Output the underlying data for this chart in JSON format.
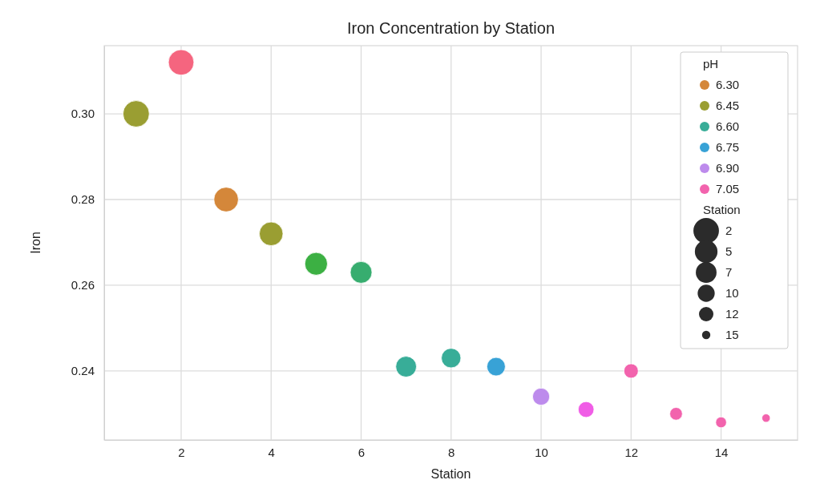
{
  "chart_data": {
    "type": "bubble",
    "title": "Iron Concentration by Station",
    "xlabel": "Station",
    "ylabel": "Iron",
    "series": [
      {
        "name": "6.30",
        "color": "#d4873a",
        "x": [
          3
        ],
        "values": [
          0.28
        ],
        "sizes": [
          0.87
        ]
      },
      {
        "name": "6.45",
        "color": "#9a9e32",
        "x": [
          1,
          4
        ],
        "values": [
          0.3,
          0.272
        ],
        "sizes": [
          1,
          0.81
        ]
      },
      {
        "name": "6.60",
        "color": "#38ad98",
        "x": [
          7,
          8
        ],
        "values": [
          0.241,
          0.243
        ],
        "sizes": [
          0.62,
          0.55
        ]
      },
      {
        "name": "6.75",
        "color": "#38a2d6",
        "x": [
          9
        ],
        "values": [
          0.241
        ],
        "sizes": [
          0.49
        ]
      },
      {
        "name": "6.90",
        "color": "#bd8bec",
        "x": [
          10
        ],
        "values": [
          0.234
        ],
        "sizes": [
          0.42
        ]
      },
      {
        "name": "7.05",
        "color": "#f263ad",
        "x": [
          12,
          13,
          14,
          15
        ],
        "values": [
          0.24,
          0.23,
          0.228,
          0.229
        ],
        "sizes": [
          0.3,
          0.23,
          0.17,
          0.1
        ]
      },
      {
        "color": "#f5657f",
        "x": [
          2
        ],
        "values": [
          0.312
        ],
        "sizes": [
          0.94
        ]
      },
      {
        "color": "#3cb043",
        "x": [
          5
        ],
        "values": [
          0.265
        ],
        "sizes": [
          0.74
        ]
      },
      {
        "color": "#37ad6f",
        "x": [
          6
        ],
        "values": [
          0.263
        ],
        "sizes": [
          0.68
        ]
      },
      {
        "color": "#f05de6",
        "x": [
          11
        ],
        "values": [
          0.231
        ],
        "sizes": [
          0.36
        ]
      }
    ],
    "legend_title": "pH",
    "annotations": [
      "Station",
      "2",
      "5",
      "7",
      "10",
      "12",
      "15"
    ],
    "xlim": [
      0.29,
      15.7
    ],
    "xticks": [
      2,
      4,
      6,
      8,
      10,
      12,
      14
    ],
    "ylim": [
      0.2239,
      0.3159
    ],
    "yticks": [
      {
        "value": 0.24,
        "label": "0.24"
      },
      {
        "value": 0.26,
        "label": "0.26"
      },
      {
        "value": 0.28,
        "label": "0.28"
      },
      {
        "value": 0.3,
        "label": "0.30"
      }
    ],
    "grid": true,
    "legend": "top right",
    "marker": "circle"
  }
}
